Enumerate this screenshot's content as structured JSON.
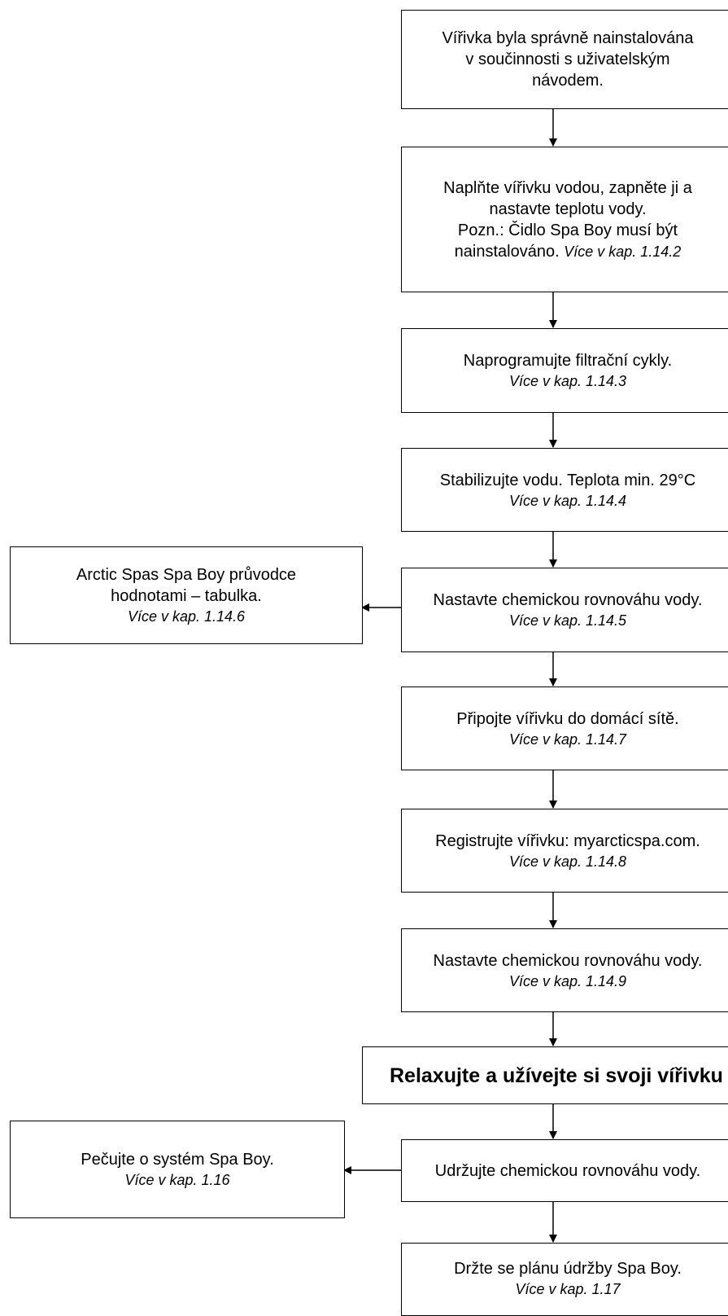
{
  "steps": {
    "installed": {
      "lines": [
        "Vířivka byla správně nainstalována",
        "v součinnosti s uživatelským",
        "návodem."
      ]
    },
    "fill": {
      "lines": [
        "Naplňte vířivku vodou, zapněte ji a",
        "nastavte teplotu vody.",
        "Pozn.: Čidlo Spa Boy musí být"
      ],
      "last_line": "nainstalováno.",
      "ref": "Více v kap. 1.14.2"
    },
    "filter": {
      "text": "Naprogramujte filtrační cykly.",
      "ref": "Více v kap. 1.14.3"
    },
    "stabilize": {
      "text": "Stabilizujte vodu. Teplota min. 29°C",
      "ref": "Více v kap. 1.14.4"
    },
    "chem1": {
      "text": "Nastavte chemickou rovnováhu vody.",
      "ref": "Více v kap. 1.14.5"
    },
    "connect": {
      "text": "Připojte vířivku do domácí sítě.",
      "ref": "Více v kap. 1.14.7"
    },
    "register": {
      "text": "Registrujte vířivku: myarcticspa.com.",
      "ref": "Více v kap. 1.14.8"
    },
    "chem2": {
      "text": "Nastavte chemickou rovnováhu vody.",
      "ref": "Více v kap. 1.14.9"
    },
    "relax": {
      "text": "Relaxujte a užívejte si svoji vířivku"
    },
    "maintain": {
      "text": "Udržujte chemickou rovnováhu vody."
    },
    "schedule": {
      "text": "Držte se plánu údržby Spa Boy.",
      "ref": "Více v kap. 1.17"
    }
  },
  "side": {
    "guide": {
      "lines": [
        "Arctic Spas Spa Boy průvodce",
        "hodnotami – tabulka."
      ],
      "ref": "Více v kap. 1.14.6"
    },
    "care": {
      "text": "Pečujte o systém Spa Boy.",
      "ref": "Více v kap. 1.16"
    }
  }
}
